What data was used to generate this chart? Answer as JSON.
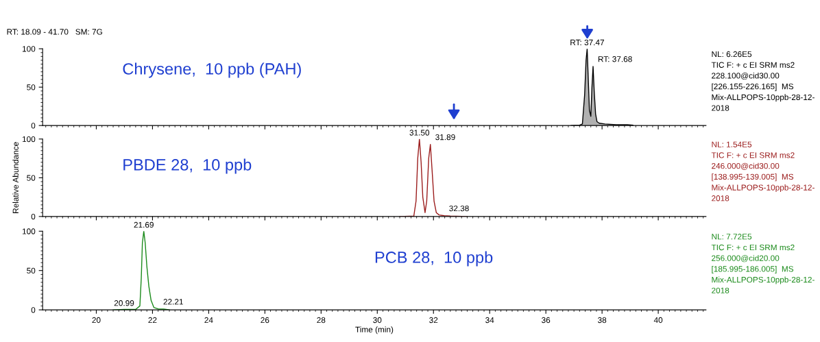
{
  "chart_data": [
    {
      "type": "area",
      "title": "RT: 18.09 - 41.70   SM: 7G",
      "xlim": [
        18.09,
        41.7
      ],
      "ylim": [
        0,
        100
      ],
      "xticks": [
        20,
        22,
        24,
        26,
        28,
        30,
        32,
        34,
        36,
        38,
        40
      ],
      "yticks": [
        0,
        50,
        100
      ],
      "tick_labels": "y",
      "series": [
        {
          "color": "#000000",
          "x": [
            36.9,
            37.2,
            37.3,
            37.38,
            37.43,
            37.47,
            37.51,
            37.55,
            37.6,
            37.64,
            37.68,
            37.72,
            37.77,
            37.82,
            37.9,
            38.1,
            38.5,
            38.9,
            39.1
          ],
          "values": [
            0,
            0.5,
            2,
            40,
            85,
            100,
            60,
            20,
            12,
            50,
            77,
            45,
            15,
            5,
            3,
            2,
            1,
            1,
            0.5
          ]
        }
      ],
      "annotations": [
        "Chrysene,  10 ppb (PAH)",
        "NL: 6.26E5\nTIC F: + c EI SRM ms2\n228.100@cid30.00\n[226.155-226.165]  MS\nMix-ALLPOPS-10ppb-28-12-\n2018",
        {
          "text": "RT: 37.47",
          "x": 37.47,
          "y": 100
        },
        {
          "text": "RT: 37.68",
          "x": 37.68,
          "y": 77
        }
      ]
    },
    {
      "type": "line",
      "ylabel": "Relative Abundance",
      "xlim": [
        18.09,
        41.7
      ],
      "ylim": [
        0,
        100
      ],
      "xticks": [
        20,
        22,
        24,
        26,
        28,
        30,
        32,
        34,
        36,
        38,
        40
      ],
      "yticks": [
        0,
        50,
        100
      ],
      "tick_labels": "y",
      "series": [
        {
          "color": "#9b1c1c",
          "x": [
            30.8,
            31.3,
            31.38,
            31.44,
            31.5,
            31.56,
            31.62,
            31.7,
            31.76,
            31.83,
            31.89,
            31.95,
            32.02,
            32.1,
            32.2,
            32.38,
            32.6,
            33.2
          ],
          "values": [
            0,
            0.5,
            20,
            75,
            100,
            70,
            25,
            5,
            20,
            75,
            93,
            60,
            20,
            5,
            2,
            1,
            0.5,
            0
          ]
        }
      ],
      "annotations": [
        "PBDE 28,  10 ppb",
        "NL: 1.54E5\nTIC F: + c EI SRM ms2\n246.000@cid30.00\n[138.995-139.005]  MS\nMix-ALLPOPS-10ppb-28-12-\n2018",
        {
          "text": "31.50",
          "x": 31.5,
          "y": 100
        },
        {
          "text": "31.89",
          "x": 31.89,
          "y": 93
        },
        {
          "text": "32.38",
          "x": 32.38,
          "y": 1
        }
      ]
    },
    {
      "type": "line",
      "xlabel": "Time (min)",
      "xlim": [
        18.09,
        41.7
      ],
      "ylim": [
        0,
        100
      ],
      "xticks": [
        20,
        22,
        24,
        26,
        28,
        30,
        32,
        34,
        36,
        38,
        40
      ],
      "yticks": [
        0,
        50,
        100
      ],
      "series": [
        {
          "color": "#1a8a1a",
          "x": [
            20.6,
            20.99,
            21.4,
            21.55,
            21.6,
            21.64,
            21.69,
            21.74,
            21.8,
            21.87,
            21.95,
            22.05,
            22.21,
            22.4,
            22.6
          ],
          "values": [
            0,
            0.5,
            0.5,
            5,
            40,
            85,
            100,
            85,
            55,
            30,
            12,
            3,
            1,
            1,
            0
          ]
        }
      ],
      "annotations": [
        "PCB 28,  10 ppb",
        "NL: 7.72E5\nTIC F: + c EI SRM ms2\n256.000@cid20.00\n[185.995-186.005]  MS\nMix-ALLPOPS-10ppb-28-12-\n2018",
        {
          "text": "21.69",
          "x": 21.69,
          "y": 100
        },
        {
          "text": "20.99",
          "x": 20.99,
          "y": 0.5
        },
        {
          "text": "22.21",
          "x": 22.21,
          "y": 1
        }
      ]
    }
  ]
}
